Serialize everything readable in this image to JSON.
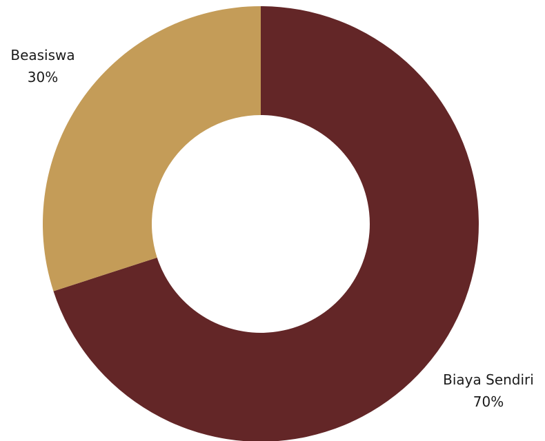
{
  "chart_data": {
    "type": "pie",
    "variant": "donut",
    "legend": "none",
    "slices": [
      {
        "label": "Biaya Sendiri",
        "value": 70,
        "value_label": "70%",
        "color": "#632627"
      },
      {
        "label": "Beasiswa",
        "value": 30,
        "value_label": "30%",
        "color": "#c49c58"
      }
    ]
  }
}
